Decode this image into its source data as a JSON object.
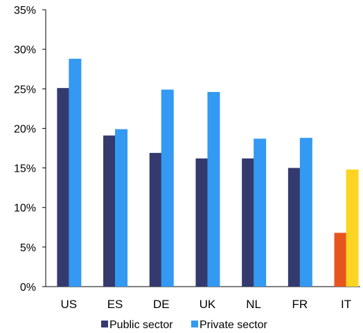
{
  "chart_data": {
    "type": "bar",
    "categories": [
      "US",
      "ES",
      "DE",
      "UK",
      "NL",
      "FR",
      "IT"
    ],
    "series": [
      {
        "name": "Public sector",
        "values": [
          25.1,
          19.1,
          16.9,
          16.2,
          16.2,
          15.0,
          6.8
        ]
      },
      {
        "name": "Private sector",
        "values": [
          28.8,
          19.9,
          24.9,
          24.6,
          18.7,
          18.8,
          14.8
        ]
      }
    ],
    "ylim": [
      0,
      35
    ],
    "yticks": [
      0,
      5,
      10,
      15,
      20,
      25,
      30,
      35
    ],
    "ytick_labels": [
      "0%",
      "5%",
      "10%",
      "15%",
      "20%",
      "25%",
      "30%",
      "35%"
    ],
    "grid": false,
    "legend_position": "bottom",
    "colors": {
      "public": "#343a6e",
      "private": "#3399f2",
      "highlight_public": "#e8541e",
      "highlight_private": "#fdd421"
    },
    "highlight_category": "IT"
  }
}
